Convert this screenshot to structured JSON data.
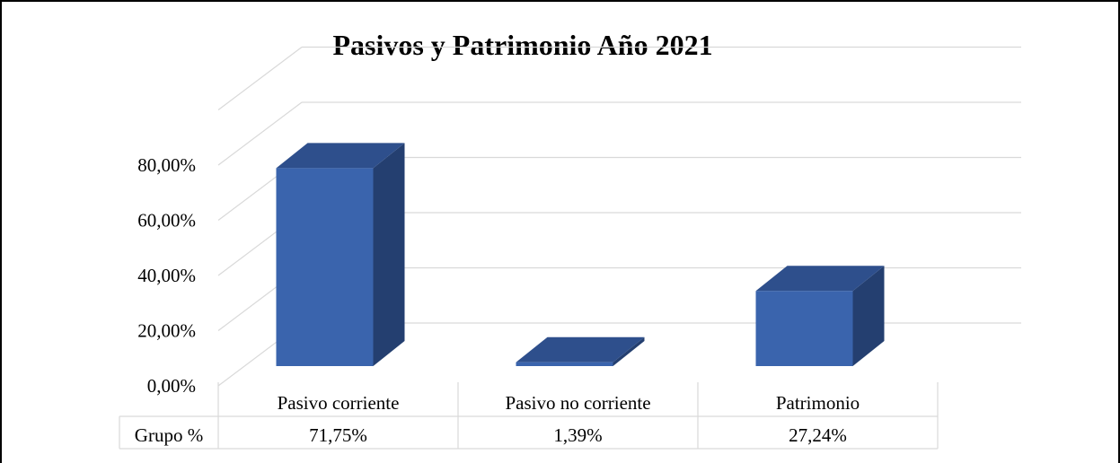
{
  "chart_data": {
    "type": "bar",
    "title": "Pasivos y Patrimonio Año 2021",
    "categories": [
      "Pasivo corriente",
      "Pasivo no corriente",
      "Patrimonio"
    ],
    "series": [
      {
        "name": "Grupo %",
        "values": [
          71.75,
          1.39,
          27.24
        ]
      }
    ],
    "value_labels": [
      "71,75%",
      "1,39%",
      "27,24%"
    ],
    "y_ticks": [
      "0,00%",
      "20,00%",
      "40,00%",
      "60,00%",
      "80,00%"
    ],
    "ylim": [
      0,
      100
    ],
    "grid": true,
    "legend": "data table below axis",
    "colors": {
      "bar_front": "#3a64ad",
      "bar_top": "#2e4f8c",
      "bar_side": "#243f70",
      "grid": "#d9d9d9"
    }
  }
}
